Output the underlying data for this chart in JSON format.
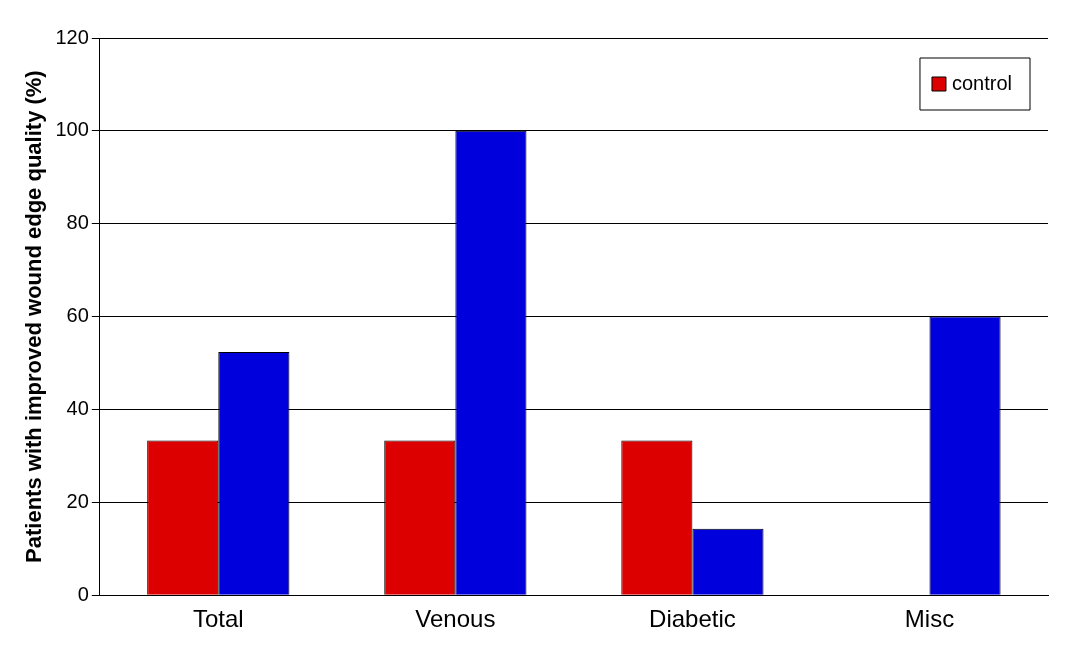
{
  "chart_data": {
    "type": "bar",
    "ylabel": "Patients with improved wound edge quality (%)",
    "categories": [
      "Total",
      "Venous",
      "Diabetic",
      "Misc"
    ],
    "series": [
      {
        "name": "control",
        "color": "#dd0000",
        "values": [
          33.3,
          33.3,
          33.3,
          0
        ]
      },
      {
        "color": "#0000dd",
        "values": [
          52.4,
          100,
          14.3,
          60
        ]
      }
    ],
    "ylim": [
      0,
      120
    ],
    "yticks": [
      0,
      20,
      40,
      60,
      80,
      100,
      120
    ],
    "grid": "y",
    "legend": "top right"
  }
}
